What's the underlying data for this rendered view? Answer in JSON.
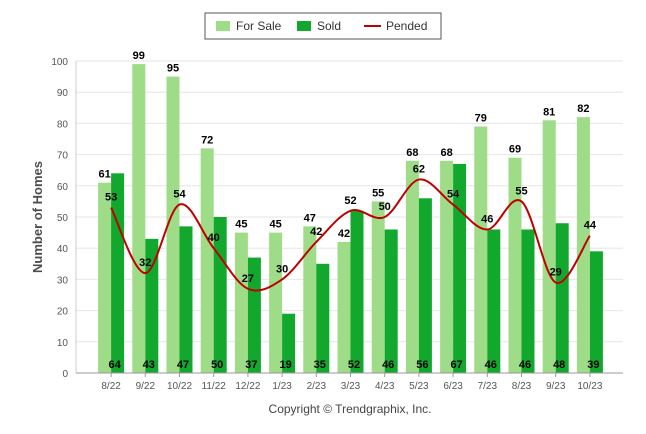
{
  "chart_data": {
    "type": "bar",
    "categories": [
      "8/22",
      "9/22",
      "10/22",
      "11/22",
      "12/22",
      "1/23",
      "2/23",
      "3/23",
      "4/23",
      "5/23",
      "6/23",
      "7/23",
      "8/23",
      "9/23",
      "10/23"
    ],
    "series": [
      {
        "name": "For Sale",
        "type": "bar",
        "color": "#9edc87",
        "values": [
          61,
          99,
          95,
          72,
          45,
          45,
          47,
          42,
          55,
          68,
          68,
          79,
          69,
          81,
          82
        ]
      },
      {
        "name": "Sold",
        "type": "bar",
        "color": "#12a82e",
        "values": [
          64,
          43,
          47,
          50,
          37,
          19,
          35,
          52,
          46,
          56,
          67,
          46,
          46,
          48,
          39
        ]
      },
      {
        "name": "Pended",
        "type": "line",
        "color": "#c00000",
        "values": [
          53,
          32,
          54,
          40,
          27,
          30,
          42,
          52,
          50,
          62,
          54,
          46,
          55,
          29,
          44
        ]
      }
    ],
    "ylabel": "Number of Homes",
    "ylim": [
      0,
      100
    ],
    "yticks": [
      0,
      10,
      20,
      30,
      40,
      50,
      60,
      70,
      80,
      90,
      100
    ],
    "grid": true,
    "legend_position": "top-center"
  },
  "footer": "Copyright © Trendgraphix, Inc."
}
